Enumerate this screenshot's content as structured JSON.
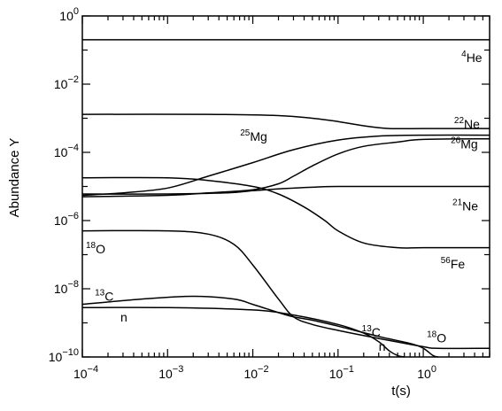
{
  "chart_data": {
    "type": "line",
    "xlabel": "t(s)",
    "ylabel": "Abundance Y",
    "xscale": "log",
    "yscale": "log",
    "xlim": [
      0.0001,
      6
    ],
    "ylim": [
      1e-10,
      1
    ],
    "x_tick_labels": [
      {
        "base": "10",
        "exp": "−4",
        "value": 0.0001
      },
      {
        "base": "10",
        "exp": "−3",
        "value": 0.001
      },
      {
        "base": "10",
        "exp": "−2",
        "value": 0.01
      },
      {
        "base": "10",
        "exp": "−1",
        "value": 0.1
      },
      {
        "base": "10",
        "exp": "0",
        "value": 1
      }
    ],
    "y_tick_labels": [
      {
        "base": "10",
        "exp": "0",
        "value": 1
      },
      {
        "base": "10",
        "exp": "−2",
        "value": 0.01
      },
      {
        "base": "10",
        "exp": "−4",
        "value": 0.0001
      },
      {
        "base": "10",
        "exp": "−6",
        "value": 1e-06
      },
      {
        "base": "10",
        "exp": "−8",
        "value": 1e-08
      },
      {
        "base": "10",
        "exp": "−10",
        "value": 1e-10
      }
    ],
    "series": [
      {
        "name": "4He",
        "mass": "4",
        "symbol": "He",
        "x": [
          0.0001,
          0.01,
          1,
          6
        ],
        "y": [
          0.2,
          0.2,
          0.2,
          0.2
        ]
      },
      {
        "name": "22Ne",
        "mass": "22",
        "symbol": "Ne",
        "x": [
          0.0001,
          0.003,
          0.02,
          0.05,
          0.1,
          0.2,
          0.4,
          1,
          6
        ],
        "y": [
          0.0013,
          0.0013,
          0.0012,
          0.001,
          0.0008,
          0.0006,
          0.0005,
          0.0005,
          0.0005
        ]
      },
      {
        "name": "25Mg",
        "mass": "25",
        "symbol": "Mg",
        "x": [
          0.0001,
          0.0003,
          0.001,
          0.003,
          0.01,
          0.03,
          0.1,
          0.3,
          1,
          6
        ],
        "y": [
          5.5e-06,
          6.5e-06,
          9e-06,
          2e-05,
          5e-05,
          0.00012,
          0.00023,
          0.0003,
          0.00032,
          0.00032
        ]
      },
      {
        "name": "26Mg",
        "mass": "26",
        "symbol": "Mg",
        "x": [
          0.0001,
          0.001,
          0.003,
          0.01,
          0.02,
          0.03,
          0.05,
          0.1,
          0.2,
          0.5,
          1,
          6
        ],
        "y": [
          5e-06,
          5.5e-06,
          6.5e-06,
          8e-06,
          1.2e-05,
          2e-05,
          4e-05,
          9e-05,
          0.00015,
          0.0002,
          0.00024,
          0.00025
        ]
      },
      {
        "name": "21Ne",
        "mass": "21",
        "symbol": "Ne",
        "x": [
          0.0001,
          0.001,
          0.005,
          0.01,
          0.02,
          0.05,
          0.1,
          1,
          6
        ],
        "y": [
          6e-06,
          6e-06,
          6.5e-06,
          7.5e-06,
          8.5e-06,
          9.5e-06,
          1e-05,
          1e-05,
          1e-05
        ]
      },
      {
        "name": "56Fe",
        "mass": "56",
        "symbol": "Fe",
        "x": [
          0.0001,
          0.001,
          0.003,
          0.01,
          0.02,
          0.04,
          0.07,
          0.1,
          0.2,
          0.5,
          1,
          6
        ],
        "y": [
          1.8e-05,
          1.8e-05,
          1.5e-05,
          1e-05,
          6e-06,
          2.5e-06,
          1e-06,
          5e-07,
          2.2e-07,
          1.6e-07,
          1.6e-07,
          1.6e-07
        ]
      },
      {
        "name": "18O",
        "mass": "18",
        "symbol": "O",
        "x": [
          0.0001,
          0.001,
          0.003,
          0.006,
          0.01,
          0.02,
          0.03,
          0.05,
          0.1,
          0.3,
          1,
          1.5,
          6
        ],
        "y": [
          5e-07,
          5e-07,
          4e-07,
          2e-07,
          5e-08,
          5e-09,
          1.5e-09,
          9e-10,
          6e-10,
          3.5e-10,
          2e-10,
          1.8e-10,
          1.8e-10
        ]
      },
      {
        "name": "13C",
        "mass": "13",
        "symbol": "C",
        "x": [
          0.0001,
          0.0005,
          0.002,
          0.006,
          0.01,
          0.02,
          0.03,
          0.05,
          0.1,
          0.3,
          0.7,
          1,
          1.3,
          1.5
        ],
        "y": [
          3.5e-09,
          5e-09,
          6e-09,
          5e-09,
          3.5e-09,
          2e-09,
          1.5e-09,
          1.2e-09,
          8e-10,
          4e-10,
          2.5e-10,
          1.8e-10,
          1.1e-10,
          1e-10
        ]
      },
      {
        "name": "n",
        "mass": "",
        "symbol": "n",
        "x": [
          0.0001,
          0.001,
          0.01,
          0.03,
          0.1,
          0.2,
          0.3,
          0.4,
          0.5,
          0.6
        ],
        "y": [
          2.8e-09,
          2.8e-09,
          2.4e-09,
          1.7e-09,
          9e-10,
          5e-10,
          2.8e-10,
          1.5e-10,
          1.1e-10,
          1e-10
        ]
      }
    ],
    "annotations": [
      {
        "series": "4He",
        "mass": "4",
        "symbol": "He",
        "x": 2.8,
        "y": 0.045
      },
      {
        "series": "22Ne",
        "mass": "22",
        "symbol": "Ne",
        "x": 2.3,
        "y": 0.0005
      },
      {
        "series": "25Mg",
        "mass": "25",
        "symbol": "Mg",
        "x": 0.0071,
        "y": 0.00022
      },
      {
        "series": "26Mg",
        "mass": "26",
        "symbol": "Mg",
        "x": 2.1,
        "y": 0.00013
      },
      {
        "series": "21Ne",
        "mass": "21",
        "symbol": "Ne",
        "x": 2.2,
        "y": 2e-06
      },
      {
        "series": "56Fe",
        "mass": "56",
        "symbol": "Fe",
        "x": 1.6,
        "y": 4e-08
      },
      {
        "series": "18O",
        "mass": "18",
        "symbol": "O",
        "x": 0.00011,
        "y": 1.1e-07
      },
      {
        "series": "13C",
        "mass": "13",
        "symbol": "C",
        "x": 0.00014,
        "y": 4.5e-09
      },
      {
        "series": "n",
        "mass": "",
        "symbol": "n",
        "x": 0.00028,
        "y": 1.1e-09
      },
      {
        "series": "13C",
        "mass": "13",
        "symbol": "C",
        "x": 0.19,
        "y": 4e-10
      },
      {
        "series": "18O",
        "mass": "18",
        "symbol": "O",
        "x": 1.1,
        "y": 2.7e-10
      },
      {
        "series": "n",
        "mass": "",
        "symbol": "n",
        "x": 0.3,
        "y": 1.5e-10
      }
    ]
  }
}
